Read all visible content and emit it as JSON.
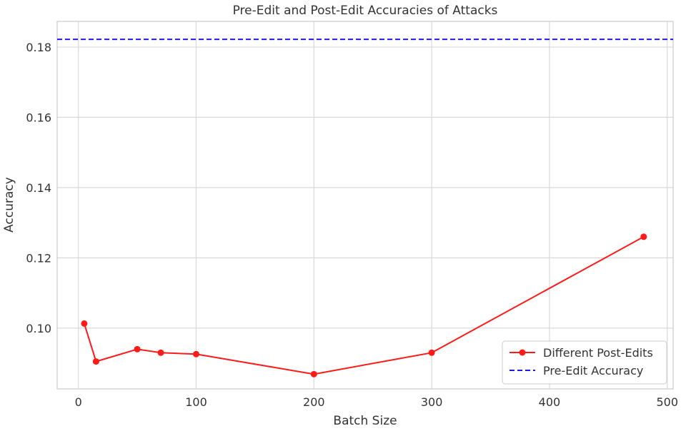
{
  "chart_data": {
    "type": "line",
    "title": "Pre-Edit and Post-Edit Accuracies of Attacks",
    "xlabel": "Batch Size",
    "ylabel": "Accuracy",
    "xlim": [
      -18,
      505
    ],
    "ylim": [
      0.0827,
      0.1873
    ],
    "xticks": [
      0,
      100,
      200,
      300,
      400,
      500
    ],
    "yticks": [
      0.1,
      0.12,
      0.14,
      0.16,
      0.18
    ],
    "xtick_labels": [
      "0",
      "100",
      "200",
      "300",
      "400",
      "500"
    ],
    "ytick_labels": [
      "0.10",
      "0.12",
      "0.14",
      "0.16",
      "0.18"
    ],
    "grid": true,
    "legend_position": "lower-right",
    "series": [
      {
        "name": "Different Post-Edits",
        "color": "#ff1a1a",
        "style": "solid",
        "marker": "circle",
        "x": [
          5,
          15,
          50,
          70,
          100,
          200,
          300,
          480
        ],
        "y": [
          0.1013,
          0.0905,
          0.094,
          0.093,
          0.0926,
          0.0869,
          0.093,
          0.126
        ]
      },
      {
        "name": "Pre-Edit Accuracy",
        "color": "#1a1aee",
        "style": "dashed",
        "hline": 0.1822
      }
    ]
  }
}
